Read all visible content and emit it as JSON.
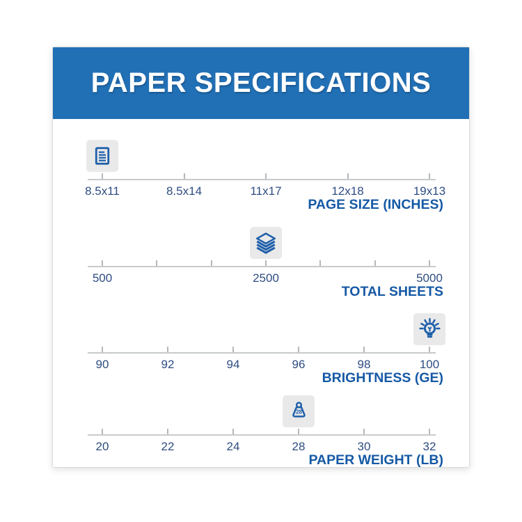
{
  "header": {
    "title": "PAPER SPECIFICATIONS"
  },
  "colors": {
    "header_bg": "#2170b6",
    "header_text": "#ffffff",
    "icon_blue": "#1e5fa9",
    "tick_label": "#2e4d82",
    "axis_title": "#1659a5",
    "line_gray": "#c7cacc",
    "tick_gray": "#b4b8bb",
    "badge_bg": "#e9e9ea"
  },
  "chart_data": [
    {
      "type": "scale",
      "title": "PAGE SIZE (INCHES)",
      "tick_labels": [
        "8.5x11",
        "8.5x14",
        "11x17",
        "12x18",
        "19x13"
      ],
      "selected_value": "8.5x11",
      "selected_index": 0,
      "marker_icon": "document-icon"
    },
    {
      "type": "scale",
      "title": "TOTAL SHEETS",
      "tick_labels": [
        "500",
        "",
        "",
        "2500",
        "",
        "",
        "5000"
      ],
      "axis_range": [
        500,
        5000
      ],
      "selected_value": "2500",
      "selected_index": 3,
      "marker_icon": "paper-stack-icon"
    },
    {
      "type": "scale",
      "title": "BRIGHTNESS (GE)",
      "tick_labels": [
        "90",
        "92",
        "94",
        "96",
        "98",
        "100"
      ],
      "selected_value": "100",
      "selected_index": 5,
      "marker_icon": "lightbulb-icon"
    },
    {
      "type": "scale",
      "title": "PAPER WEIGHT (LB)",
      "tick_labels": [
        "20",
        "22",
        "24",
        "28",
        "30",
        "32"
      ],
      "selected_value": "28",
      "selected_index": 3,
      "marker_icon": "weight-icon",
      "marker_text": "28"
    }
  ]
}
